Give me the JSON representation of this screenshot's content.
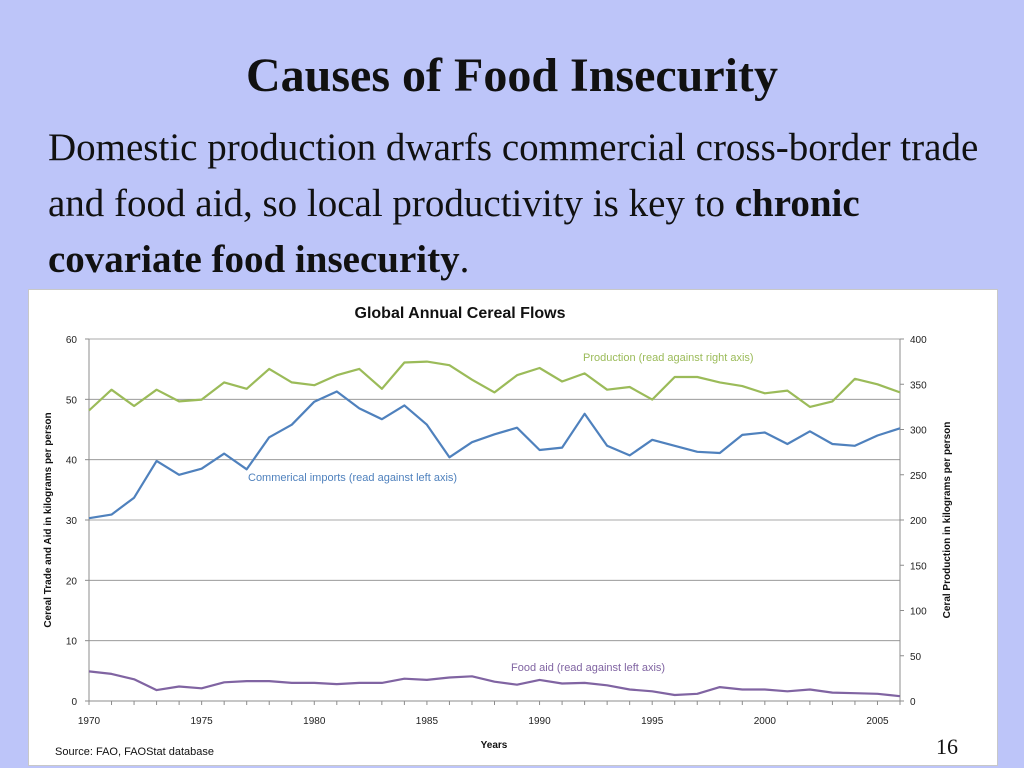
{
  "slide": {
    "title": "Causes of Food Insecurity",
    "body_text": "Domestic production dwarfs commercial cross-border trade and food aid, so local productivity is key to ",
    "body_bold": "chronic covariate food insecurity",
    "body_end": ".",
    "page_number": "16"
  },
  "chart_data": {
    "type": "line",
    "title": "Global Annual Cereal Flows",
    "xlabel": "Years",
    "ylabel_left": "Cereal Trade and Aid in kilograms per person",
    "ylabel_right": "Ceral Production in kilograms per person",
    "source": "Source: FAO, FAOStat database",
    "xlim": [
      1970,
      2006
    ],
    "ylim_left": [
      0,
      60
    ],
    "ylim_right": [
      0,
      400
    ],
    "x_ticks": [
      1970,
      1975,
      1980,
      1985,
      1990,
      1995,
      2000,
      2005
    ],
    "y_ticks_left": [
      0,
      10,
      20,
      30,
      40,
      50,
      60
    ],
    "y_ticks_right": [
      0,
      50,
      100,
      150,
      200,
      250,
      300,
      350,
      400
    ],
    "grid": true,
    "x": [
      1970,
      1971,
      1972,
      1973,
      1974,
      1975,
      1976,
      1977,
      1978,
      1979,
      1980,
      1981,
      1982,
      1983,
      1984,
      1985,
      1986,
      1987,
      1988,
      1989,
      1990,
      1991,
      1992,
      1993,
      1994,
      1995,
      1996,
      1997,
      1998,
      1999,
      2000,
      2001,
      2002,
      2003,
      2004,
      2005,
      2006
    ],
    "colors": {
      "production": "#9bbb59",
      "imports": "#4f81bd",
      "food_aid": "#8064a2",
      "grid": "#8c8c8c",
      "axis": "#8c8c8c"
    },
    "series": [
      {
        "name": "Production",
        "label": "Production (read against right axis)",
        "axis": "right",
        "color_key": "production",
        "values": [
          321,
          344,
          326,
          344,
          331,
          333,
          352,
          345,
          367,
          352,
          349,
          360,
          367,
          345,
          374,
          375,
          371,
          355,
          341,
          360,
          368,
          353,
          362,
          344,
          347,
          333,
          358,
          358,
          352,
          348,
          340,
          343,
          325,
          331,
          356,
          350,
          341
        ]
      },
      {
        "name": "Commercial imports",
        "label": "Commerical imports (read against left axis)",
        "axis": "left",
        "color_key": "imports",
        "values": [
          30.3,
          30.9,
          33.7,
          39.8,
          37.5,
          38.5,
          41.0,
          38.4,
          43.7,
          45.8,
          49.6,
          51.3,
          48.5,
          46.7,
          49.0,
          45.8,
          40.4,
          42.9,
          44.2,
          45.3,
          41.6,
          42.0,
          47.6,
          42.3,
          40.7,
          43.3,
          42.3,
          41.3,
          41.1,
          44.1,
          44.5,
          42.6,
          44.7,
          42.6,
          42.3,
          44.0,
          45.2
        ]
      },
      {
        "name": "Food aid",
        "label": "Food aid (read against left axis)",
        "axis": "left",
        "color_key": "food_aid",
        "values": [
          4.9,
          4.5,
          3.6,
          1.8,
          2.4,
          2.1,
          3.1,
          3.3,
          3.3,
          3.0,
          3.0,
          2.8,
          3.0,
          3.0,
          3.7,
          3.5,
          3.9,
          4.1,
          3.2,
          2.7,
          3.5,
          2.9,
          3.0,
          2.6,
          1.9,
          1.6,
          1.0,
          1.2,
          2.3,
          1.9,
          1.9,
          1.6,
          1.9,
          1.4,
          1.3,
          1.2,
          0.8
        ]
      }
    ]
  }
}
